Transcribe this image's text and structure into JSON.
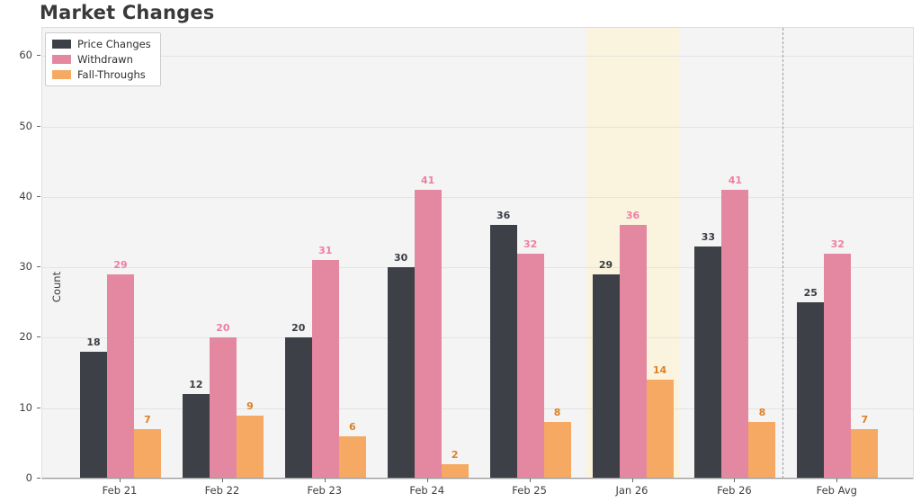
{
  "chart_data": {
    "type": "bar",
    "title": "Market Changes",
    "xlabel": "",
    "ylabel": "Count",
    "categories": [
      "Feb 21",
      "Feb 22",
      "Feb 23",
      "Feb 24",
      "Feb 25",
      "Jan 26",
      "Feb 26",
      "Feb Avg"
    ],
    "series": [
      {
        "name": "Price Changes",
        "color": "#3d4046",
        "label_color": "#3a3e44",
        "values": [
          18,
          12,
          20,
          30,
          36,
          29,
          33,
          25
        ]
      },
      {
        "name": "Withdrawn",
        "color": "#e388a0",
        "label_color": "#ee7fa2",
        "values": [
          29,
          20,
          31,
          41,
          32,
          36,
          41,
          32
        ]
      },
      {
        "name": "Fall-Throughs",
        "color": "#f5a962",
        "label_color": "#dd8026",
        "values": [
          7,
          9,
          6,
          2,
          8,
          14,
          8,
          7
        ]
      }
    ],
    "yticks": [
      0,
      10,
      20,
      30,
      40,
      50,
      60
    ],
    "ylim": [
      0,
      64
    ],
    "grid": true,
    "legend_position": "upper left",
    "highlight": {
      "category": "Jan 26",
      "color": "#faf3dd"
    },
    "separator_before_category": "Feb Avg",
    "plot_background": "#f4f4f4"
  }
}
